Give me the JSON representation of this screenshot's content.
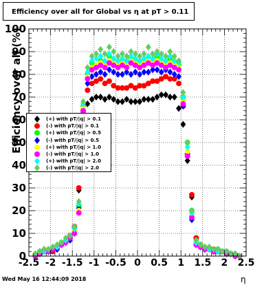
{
  "title": "Efficiency over all for Global vs   η at pT > 0.11",
  "timestamp": "Wed May 16 12:44:09 2018",
  "chart_data": {
    "type": "scatter",
    "title": "Efficiency over all for Global vs   η at pT > 0.11",
    "xlabel": "η",
    "ylabel": "Efficiency over all (%)",
    "xlim": [
      -2.5,
      2.5
    ],
    "ylim": [
      0,
      100
    ],
    "xticks": [
      "-2.5",
      "-2",
      "-1.5",
      "-1",
      "-0.5",
      "0",
      "0.5",
      "1",
      "1.5",
      "2",
      "2.5"
    ],
    "yticks": [
      "0",
      "10",
      "20",
      "30",
      "40",
      "50",
      "60",
      "70",
      "80",
      "90",
      "100"
    ],
    "legend_position": "left-middle",
    "x": [
      -2.35,
      -2.25,
      -2.15,
      -2.05,
      -1.95,
      -1.85,
      -1.75,
      -1.65,
      -1.55,
      -1.45,
      -1.35,
      -1.25,
      -1.15,
      -1.05,
      -0.95,
      -0.85,
      -0.75,
      -0.65,
      -0.55,
      -0.45,
      -0.35,
      -0.25,
      -0.15,
      -0.05,
      0.05,
      0.15,
      0.25,
      0.35,
      0.45,
      0.55,
      0.65,
      0.75,
      0.85,
      0.95,
      1.05,
      1.15,
      1.25,
      1.35,
      1.45,
      1.55,
      1.65,
      1.75,
      1.85,
      1.95,
      2.05,
      2.15,
      2.25,
      2.35
    ],
    "series": [
      {
        "name": "(+) with pT/|q| > 0.1",
        "color": "#000000",
        "marker": "diamond",
        "values": [
          1,
          2,
          3,
          2,
          4,
          3,
          5,
          6,
          8,
          12,
          29,
          60,
          67,
          69,
          70,
          70,
          69,
          70,
          69,
          68,
          68,
          69,
          68,
          68,
          68,
          69,
          69,
          69,
          70,
          71,
          71,
          70,
          70,
          65,
          58,
          42,
          26,
          7,
          4,
          3,
          3,
          2,
          3,
          2,
          2,
          1,
          1,
          0
        ]
      },
      {
        "name": "(-) with pT/|q| > 0.1",
        "color": "#ff0000",
        "marker": "circle",
        "values": [
          0,
          1,
          2,
          3,
          2,
          4,
          5,
          7,
          9,
          13,
          30,
          64,
          73,
          76,
          77,
          78,
          76,
          77,
          75,
          74,
          74,
          74,
          75,
          74,
          75,
          75,
          76,
          77,
          77,
          78,
          79,
          78,
          78,
          76,
          66,
          45,
          27,
          8,
          5,
          4,
          3,
          3,
          2,
          2,
          2,
          1,
          1,
          0
        ]
      },
      {
        "name": "(+) with pT/|q| > 0.5",
        "color": "#00ff00",
        "marker": "circle",
        "values": [
          1,
          2,
          2,
          3,
          3,
          4,
          6,
          7,
          8,
          11,
          22,
          66,
          80,
          85,
          84,
          86,
          85,
          88,
          86,
          84,
          86,
          85,
          87,
          86,
          85,
          86,
          87,
          86,
          88,
          86,
          85,
          87,
          85,
          84,
          70,
          50,
          20,
          6,
          5,
          4,
          3,
          2,
          3,
          2,
          2,
          1,
          1,
          0
        ]
      },
      {
        "name": "(-) with pT/|q| > 0.5",
        "color": "#0000ff",
        "marker": "diamond",
        "values": [
          0,
          1,
          2,
          2,
          3,
          3,
          5,
          6,
          7,
          10,
          21,
          63,
          76,
          79,
          80,
          81,
          80,
          82,
          81,
          80,
          80,
          81,
          80,
          81,
          80,
          81,
          81,
          82,
          82,
          81,
          82,
          81,
          80,
          79,
          66,
          45,
          16,
          5,
          4,
          3,
          3,
          2,
          2,
          2,
          1,
          1,
          0,
          0
        ]
      },
      {
        "name": "(+) with pT/|q| > 1.0",
        "color": "#ffff00",
        "marker": "circle",
        "values": [
          1,
          1,
          2,
          3,
          3,
          4,
          5,
          7,
          8,
          11,
          20,
          65,
          79,
          83,
          84,
          85,
          84,
          86,
          85,
          84,
          85,
          84,
          86,
          85,
          84,
          85,
          86,
          85,
          86,
          85,
          84,
          85,
          84,
          83,
          68,
          46,
          18,
          6,
          4,
          4,
          3,
          2,
          2,
          2,
          1,
          1,
          1,
          0
        ]
      },
      {
        "name": "(-) with pT/|q| > 1.0",
        "color": "#ff00ff",
        "marker": "circle",
        "values": [
          0,
          1,
          2,
          2,
          3,
          4,
          5,
          6,
          8,
          10,
          19,
          64,
          78,
          82,
          83,
          84,
          83,
          85,
          84,
          83,
          84,
          83,
          85,
          84,
          83,
          84,
          85,
          84,
          85,
          84,
          83,
          84,
          83,
          82,
          67,
          44,
          17,
          5,
          4,
          3,
          3,
          2,
          2,
          2,
          1,
          1,
          0,
          0
        ]
      },
      {
        "name": "(+) with pT/|q| > 2.0",
        "color": "#00ffff",
        "marker": "diamond",
        "values": [
          1,
          2,
          2,
          3,
          4,
          4,
          6,
          7,
          9,
          12,
          23,
          67,
          81,
          86,
          87,
          88,
          86,
          89,
          87,
          86,
          87,
          86,
          88,
          87,
          86,
          87,
          88,
          87,
          89,
          87,
          86,
          88,
          86,
          85,
          70,
          48,
          19,
          6,
          5,
          4,
          3,
          3,
          2,
          2,
          2,
          1,
          1,
          0
        ]
      },
      {
        "name": "(-) with pT/|q| > 2.0",
        "color": "#66cc66",
        "marker": "diamond",
        "values": [
          1,
          2,
          3,
          3,
          4,
          5,
          6,
          8,
          9,
          13,
          24,
          68,
          83,
          88,
          89,
          91,
          89,
          92,
          90,
          88,
          89,
          88,
          90,
          89,
          88,
          89,
          92,
          89,
          90,
          89,
          88,
          90,
          88,
          86,
          72,
          50,
          20,
          7,
          5,
          4,
          4,
          3,
          3,
          2,
          2,
          1,
          1,
          0
        ]
      }
    ]
  }
}
